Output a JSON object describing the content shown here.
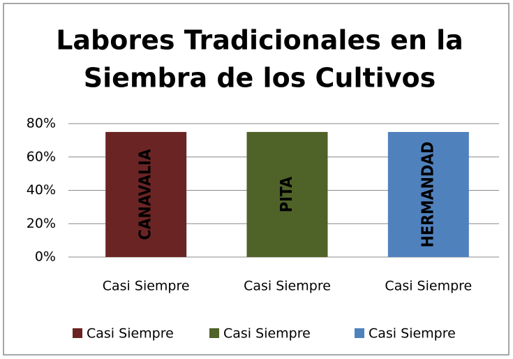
{
  "chart_data": {
    "type": "bar",
    "title": [
      "Labores Tradicionales en la",
      "Siembra de los Cultivos"
    ],
    "categories": [
      "Casi Siempre",
      "Casi Siempre",
      "Casi Siempre"
    ],
    "values": [
      75,
      75,
      75
    ],
    "colors": [
      "#6b2424",
      "#4f6228",
      "#4f81bd"
    ],
    "bar_labels": [
      "CANAVALIA",
      "PITA",
      "HERMANDAD"
    ],
    "ylim": [
      0,
      80
    ],
    "yticks": [
      {
        "value": 0,
        "label": "0%"
      },
      {
        "value": 20,
        "label": "20%"
      },
      {
        "value": 40,
        "label": "40%"
      },
      {
        "value": 60,
        "label": "60%"
      },
      {
        "value": 80,
        "label": "80%"
      }
    ],
    "grid": true,
    "legend": "bottom"
  }
}
